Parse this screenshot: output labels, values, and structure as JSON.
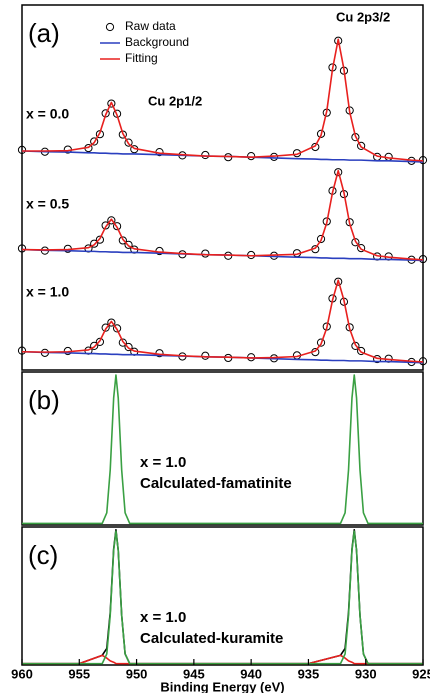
{
  "chart_data": [
    {
      "type": "line",
      "panel_label": "(a)",
      "annotations": [
        "Cu 2p3/2",
        "Cu 2p1/2",
        "x = 0.0",
        "x = 0.5",
        "x = 1.0"
      ],
      "xlim": [
        960,
        925
      ],
      "ylim": [
        0,
        100
      ],
      "x": [
        960,
        958,
        956,
        954.2,
        953.7,
        953.2,
        952.7,
        952.2,
        951.7,
        951.2,
        950.7,
        950.2,
        948,
        946,
        944,
        942,
        940,
        938,
        936,
        934.4,
        933.9,
        933.4,
        932.9,
        932.4,
        931.9,
        931.4,
        930.9,
        930.4,
        929,
        928,
        926,
        925
      ],
      "series": [
        {
          "name": "Raw data",
          "color": "#000000",
          "marker": "circle",
          "values": [
            60.3,
            59.8,
            60.4,
            60.8,
            62.6,
            64.6,
            70.3,
            73.0,
            70.2,
            64.5,
            62.3,
            60.5,
            59.7,
            58.8,
            58.9,
            58.3,
            58.6,
            58.4,
            59.4,
            61.1,
            64.7,
            70.5,
            82.9,
            90.2,
            82.0,
            71.1,
            63.8,
            61.4,
            58.4,
            58.4,
            57.3,
            57.5
          ]
        },
        {
          "name": "Background",
          "color": "#2a3fbf",
          "values": [
            60.0,
            59.8,
            59.7,
            59.5,
            59.5,
            59.4,
            59.4,
            59.3,
            59.3,
            59.2,
            59.2,
            59.2,
            59.0,
            58.8,
            58.6,
            58.5,
            58.3,
            58.1,
            57.9,
            57.8,
            57.7,
            57.7,
            57.6,
            57.6,
            57.6,
            57.5,
            57.5,
            57.5,
            57.3,
            57.3,
            57.1,
            57.0
          ]
        },
        {
          "name": "Fitting",
          "color": "#e8201e",
          "values": [
            60.0,
            60.0,
            60.1,
            61.0,
            62.3,
            65.0,
            69.9,
            73.3,
            69.8,
            64.8,
            62.0,
            60.7,
            59.4,
            59.0,
            58.6,
            58.5,
            58.3,
            58.6,
            59.1,
            61.4,
            64.3,
            70.9,
            82.4,
            90.6,
            82.4,
            70.7,
            64.1,
            61.1,
            58.6,
            58.1,
            57.5,
            57.3
          ]
        },
        {
          "color": "#000000",
          "marker": "circle",
          "values": [
            33.3,
            32.7,
            33.2,
            33.3,
            34.6,
            35.7,
            39.6,
            41.0,
            39.4,
            35.5,
            34.3,
            33.0,
            32.6,
            31.7,
            31.9,
            31.3,
            31.5,
            31.3,
            32.0,
            33.1,
            35.9,
            40.7,
            49.1,
            54.2,
            48.2,
            40.5,
            35.0,
            33.4,
            31.1,
            31.1,
            30.2,
            30.4
          ]
        },
        {
          "color": "#2a3fbf",
          "values": [
            33.0,
            32.8,
            32.7,
            32.5,
            32.5,
            32.4,
            32.4,
            32.3,
            32.3,
            32.2,
            32.2,
            32.2,
            32.0,
            31.8,
            31.6,
            31.5,
            31.3,
            31.1,
            30.9,
            30.8,
            30.7,
            30.7,
            30.6,
            30.6,
            30.6,
            30.5,
            30.5,
            30.5,
            30.3,
            30.3,
            30.1,
            30.0
          ]
        },
        {
          "color": "#e8201e",
          "values": [
            33.0,
            32.9,
            33.0,
            33.5,
            34.3,
            36.0,
            39.2,
            41.3,
            39.1,
            35.8,
            34.0,
            33.2,
            32.3,
            31.9,
            31.6,
            31.5,
            31.3,
            31.5,
            31.7,
            33.4,
            35.5,
            40.3,
            48.6,
            54.6,
            48.6,
            40.1,
            35.3,
            33.1,
            31.3,
            30.9,
            30.4,
            30.2
          ]
        },
        {
          "color": "#000000",
          "marker": "circle",
          "values": [
            5.3,
            4.7,
            5.2,
            5.3,
            6.6,
            7.7,
            11.6,
            13.0,
            11.4,
            7.5,
            6.3,
            5.0,
            4.6,
            3.7,
            3.9,
            3.3,
            3.5,
            3.2,
            4.0,
            4.9,
            7.5,
            11.9,
            19.6,
            24.2,
            18.7,
            11.7,
            6.6,
            5.2,
            3.0,
            3.1,
            2.2,
            2.4
          ]
        },
        {
          "color": "#2a3fbf",
          "values": [
            5.0,
            4.8,
            4.7,
            4.5,
            4.5,
            4.4,
            4.4,
            4.3,
            4.3,
            4.2,
            4.2,
            4.2,
            4.0,
            3.8,
            3.6,
            3.5,
            3.3,
            3.1,
            2.9,
            2.8,
            2.7,
            2.7,
            2.6,
            2.6,
            2.6,
            2.5,
            2.5,
            2.5,
            2.3,
            2.3,
            2.1,
            2.0
          ]
        },
        {
          "color": "#e8201e",
          "values": [
            5.0,
            4.9,
            5.0,
            5.5,
            6.3,
            8.0,
            11.2,
            13.3,
            11.1,
            7.8,
            6.0,
            5.2,
            4.3,
            3.9,
            3.6,
            3.5,
            3.3,
            3.4,
            3.7,
            5.2,
            7.1,
            11.5,
            19.1,
            24.6,
            19.1,
            11.3,
            6.9,
            4.9,
            3.2,
            2.9,
            2.4,
            2.2
          ]
        }
      ]
    },
    {
      "type": "line",
      "panel_label": "(b)",
      "annotations": [
        "x = 1.0",
        "Calculated-famatinite"
      ],
      "xlim": [
        960,
        925
      ],
      "ylim": [
        0,
        1
      ],
      "x": [
        960,
        955,
        953.0,
        952.6,
        952.3,
        952.0,
        951.8,
        951.6,
        951.3,
        951.0,
        950.6,
        945,
        940,
        935,
        932.2,
        931.8,
        931.5,
        931.2,
        931.0,
        930.8,
        930.5,
        930.2,
        929.8,
        925
      ],
      "series": [
        {
          "color": "#3aa043",
          "values": [
            0.01,
            0.01,
            0.01,
            0.08,
            0.36,
            0.83,
            0.98,
            0.83,
            0.36,
            0.08,
            0.01,
            0.01,
            0.01,
            0.01,
            0.01,
            0.08,
            0.36,
            0.83,
            0.98,
            0.83,
            0.36,
            0.08,
            0.01,
            0.01
          ]
        }
      ]
    },
    {
      "type": "line",
      "panel_label": "(c)",
      "annotations": [
        "x = 1.0",
        "Calculated-kuramite"
      ],
      "xlim": [
        960,
        925
      ],
      "ylim": [
        0,
        1
      ],
      "xticks": [
        960,
        955,
        950,
        945,
        940,
        935,
        930,
        925
      ],
      "xlabel": "Binding Energy (eV)",
      "x": [
        960,
        955,
        953.0,
        952.6,
        952.3,
        952.0,
        951.8,
        951.6,
        951.3,
        951.0,
        950.6,
        945,
        940,
        935,
        932.2,
        931.8,
        931.5,
        931.2,
        931.0,
        930.8,
        930.5,
        930.2,
        929.8,
        925
      ],
      "series": [
        {
          "color": "#000000",
          "values": [
            0.01,
            0.01,
            0.07,
            0.12,
            0.38,
            0.84,
            0.98,
            0.83,
            0.36,
            0.08,
            0.01,
            0.01,
            0.01,
            0.01,
            0.07,
            0.12,
            0.38,
            0.84,
            0.98,
            0.83,
            0.36,
            0.08,
            0.01,
            0.01
          ]
        },
        {
          "color": "#e8201e",
          "values": [
            0.01,
            0.01,
            0.07,
            0.05,
            0.03,
            0.02,
            0.01,
            0.01,
            0.01,
            0.01,
            0.01,
            0.01,
            0.01,
            0.01,
            0.07,
            0.05,
            0.03,
            0.02,
            0.01,
            0.01,
            0.01,
            0.01,
            0.01,
            0.01
          ]
        },
        {
          "color": "#3aa043",
          "values": [
            0.01,
            0.01,
            0.01,
            0.08,
            0.36,
            0.83,
            0.97,
            0.83,
            0.36,
            0.08,
            0.01,
            0.01,
            0.01,
            0.01,
            0.01,
            0.08,
            0.36,
            0.83,
            0.97,
            0.83,
            0.36,
            0.08,
            0.01,
            0.01
          ]
        }
      ]
    }
  ]
}
